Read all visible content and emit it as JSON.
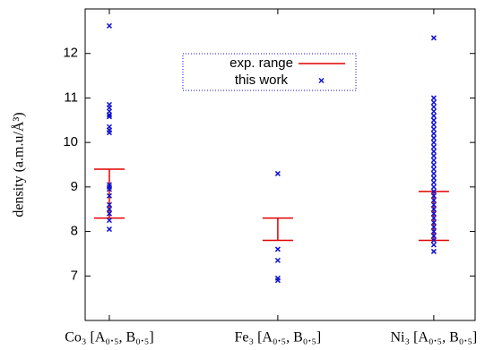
{
  "chart_data": {
    "type": "range-scatter",
    "y_label": "density (a.m.u/Å³)",
    "categories": [
      "Co₃ [A₀.₅, B₀.₅]",
      "Fe₃ [A₀.₅, B₀.₅]",
      "Ni₃ [A₀.₅, B₀.₅]"
    ],
    "ylim": [
      6,
      13
    ],
    "yticks": [
      7,
      8,
      9,
      10,
      11,
      12
    ],
    "legend": "top-center",
    "series": [
      {
        "name": "exp. range",
        "color": "#e00000",
        "low": [
          8.3,
          7.8,
          7.8
        ],
        "high": [
          9.4,
          8.3,
          8.9
        ]
      },
      {
        "name": "this work",
        "color": "#1010d0",
        "values": [
          [
            12.62,
            10.85,
            10.78,
            10.7,
            10.62,
            10.58,
            10.35,
            10.28,
            10.22,
            9.05,
            9.0,
            8.95,
            8.8,
            8.6,
            8.5,
            8.4,
            8.25,
            8.05
          ],
          [
            9.3,
            7.6,
            7.35,
            6.95,
            6.9
          ],
          [
            12.35,
            11.0,
            10.9,
            10.8,
            10.7,
            10.6,
            10.5,
            10.4,
            10.3,
            10.2,
            10.1,
            10.0,
            9.9,
            9.8,
            9.7,
            9.6,
            9.5,
            9.4,
            9.3,
            9.2,
            9.1,
            9.0,
            8.9,
            8.8,
            8.7,
            8.6,
            8.5,
            8.4,
            8.3,
            8.2,
            8.1,
            8.0,
            7.9,
            7.8,
            7.7,
            7.55
          ]
        ]
      }
    ]
  }
}
